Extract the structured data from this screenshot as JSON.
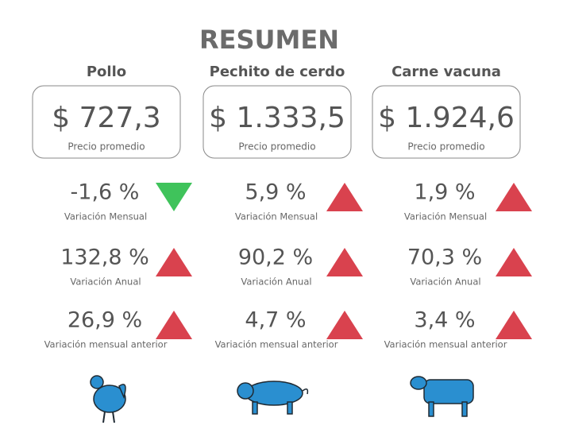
{
  "title": "RESUMEN",
  "columns": [
    {
      "name": "Pollo",
      "price": "$ 727,3",
      "price_label": "Precio promedio",
      "metrics": [
        {
          "value": "-1,6 %",
          "label": "Variación Mensual",
          "trend": "down",
          "color": "#3fc35b"
        },
        {
          "value": "132,8 %",
          "label": "Variación Anual",
          "trend": "up",
          "color": "#d9424e"
        },
        {
          "value": "26,9 %",
          "label": "Variación mensual anterior",
          "trend": "up",
          "color": "#d9424e"
        }
      ]
    },
    {
      "name": "Pechito de cerdo",
      "price": "$ 1.333,5",
      "price_label": "Precio promedio",
      "metrics": [
        {
          "value": "5,9 %",
          "label": "Variación Mensual",
          "trend": "up",
          "color": "#d9424e"
        },
        {
          "value": "90,2 %",
          "label": "Variación Anual",
          "trend": "up",
          "color": "#d9424e"
        },
        {
          "value": "4,7 %",
          "label": "Variación mensual anterior",
          "trend": "up",
          "color": "#d9424e"
        }
      ]
    },
    {
      "name": "Carne vacuna",
      "price": "$ 1.924,6",
      "price_label": "Precio promedio",
      "metrics": [
        {
          "value": "1,9 %",
          "label": "Variación Mensual",
          "trend": "up",
          "color": "#d9424e"
        },
        {
          "value": "70,3 %",
          "label": "Variación Anual",
          "trend": "up",
          "color": "#d9424e"
        },
        {
          "value": "3,4 %",
          "label": "Variación mensual anterior",
          "trend": "up",
          "color": "#d9424e"
        }
      ]
    }
  ]
}
